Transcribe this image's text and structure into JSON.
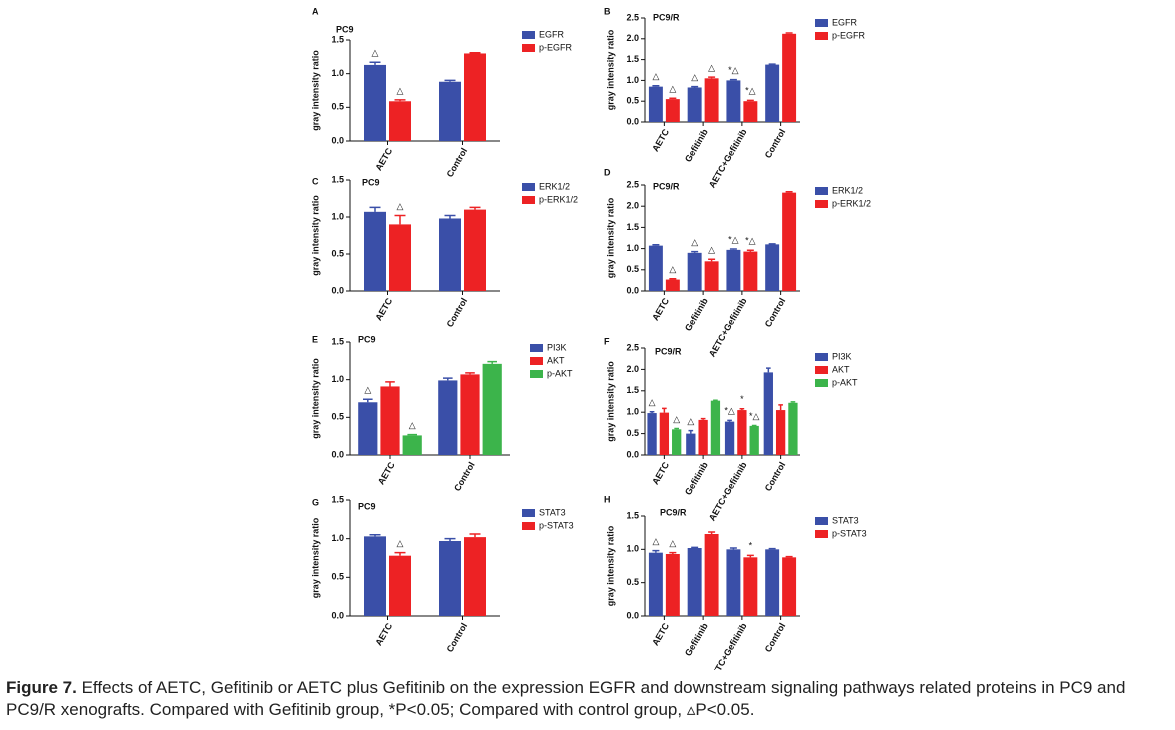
{
  "chart_data": [
    {
      "type": "bar",
      "panel": "A",
      "title": "PC9",
      "y_label": "gray intensity ratio",
      "categories": [
        "AETC",
        "Control"
      ],
      "ylim": [
        0,
        1.5
      ],
      "yticks": [
        {
          "value": 0,
          "label": "0.0"
        },
        0.5,
        {
          "value": 1,
          "label": "1.0"
        },
        1.5
      ],
      "series": [
        {
          "name": "EGFR",
          "color": "#3a4fa8",
          "values": [
            1.13,
            0.88
          ],
          "errors": [
            0.04,
            0.02
          ],
          "annotations": [
            "△",
            null
          ]
        },
        {
          "name": "p-EGFR",
          "color": "#ed2224",
          "values": [
            0.59,
            1.3
          ],
          "errors": [
            0.02,
            0.01
          ],
          "annotations": [
            "△",
            null
          ]
        }
      ]
    },
    {
      "type": "bar",
      "panel": "B",
      "title": "PC9/R",
      "y_label": "gray intensity ratio",
      "categories": [
        "AETC",
        "Gefitinib",
        "AETC+Gefitinib",
        "Control"
      ],
      "ylim": [
        0,
        2.5
      ],
      "yticks": [
        {
          "value": 0,
          "label": "0.0"
        },
        0.5,
        {
          "value": 1,
          "label": "1.0"
        },
        1.5,
        {
          "value": 2,
          "label": "2.0"
        },
        2.5
      ],
      "series": [
        {
          "name": "EGFR",
          "color": "#3a4fa8",
          "values": [
            0.85,
            0.83,
            1.0,
            1.38
          ],
          "errors": [
            0.02,
            0.02,
            0.02,
            0.01
          ],
          "annotations": [
            "△",
            "△",
            "*△",
            null
          ]
        },
        {
          "name": "p-EGFR",
          "color": "#ed2224",
          "values": [
            0.55,
            1.05,
            0.5,
            2.12
          ],
          "errors": [
            0.02,
            0.03,
            0.02,
            0.02
          ],
          "annotations": [
            "△",
            "△",
            "*△",
            null
          ]
        }
      ]
    },
    {
      "type": "bar",
      "panel": "C",
      "title": "PC9",
      "y_label": "gray intensity ratio",
      "categories": [
        "AETC",
        "Control"
      ],
      "ylim": [
        0,
        1.5
      ],
      "yticks": [
        {
          "value": 0,
          "label": "0.0"
        },
        0.5,
        {
          "value": 1,
          "label": "1.0"
        },
        1.5
      ],
      "series": [
        {
          "name": "ERK1/2",
          "color": "#3a4fa8",
          "values": [
            1.07,
            0.98
          ],
          "errors": [
            0.06,
            0.04
          ],
          "annotations": [
            null,
            null
          ]
        },
        {
          "name": "p-ERK1/2",
          "color": "#ed2224",
          "values": [
            0.9,
            1.1
          ],
          "errors": [
            0.12,
            0.03
          ],
          "annotations": [
            "△",
            null
          ]
        }
      ]
    },
    {
      "type": "bar",
      "panel": "D",
      "title": "PC9/R",
      "y_label": "gray intensity ratio",
      "categories": [
        "AETC",
        "Gefitinib",
        "AETC+Gefitinib",
        "Control"
      ],
      "ylim": [
        0,
        2.5
      ],
      "yticks": [
        {
          "value": 0,
          "label": "0.0"
        },
        0.5,
        {
          "value": 1,
          "label": "1.0"
        },
        1.5,
        {
          "value": 2,
          "label": "2.0"
        },
        2.5
      ],
      "series": [
        {
          "name": "ERK1/2",
          "color": "#3a4fa8",
          "values": [
            1.07,
            0.9,
            0.97,
            1.1
          ],
          "errors": [
            0.02,
            0.03,
            0.02,
            0.01
          ],
          "annotations": [
            null,
            "△",
            "*△",
            null
          ]
        },
        {
          "name": "p-ERK1/2",
          "color": "#ed2224",
          "values": [
            0.27,
            0.7,
            0.93,
            2.32
          ],
          "errors": [
            0.02,
            0.05,
            0.03,
            0.02
          ],
          "annotations": [
            "△",
            "△",
            "*△",
            null
          ]
        }
      ]
    },
    {
      "type": "bar",
      "panel": "E",
      "title": "PC9",
      "y_label": "gray intensity ratio",
      "categories": [
        "AETC",
        "Control"
      ],
      "ylim": [
        0,
        1.5
      ],
      "yticks": [
        {
          "value": 0,
          "label": "0.0"
        },
        0.5,
        {
          "value": 1,
          "label": "1.0"
        },
        1.5
      ],
      "series": [
        {
          "name": "PI3K",
          "color": "#3a4fa8",
          "values": [
            0.7,
            0.99
          ],
          "errors": [
            0.04,
            0.03
          ],
          "annotations": [
            "△",
            null
          ]
        },
        {
          "name": "AKT",
          "color": "#ed2224",
          "values": [
            0.91,
            1.07
          ],
          "errors": [
            0.06,
            0.02
          ],
          "annotations": [
            null,
            null
          ]
        },
        {
          "name": "p-AKT",
          "color": "#3cb44b",
          "values": [
            0.26,
            1.21
          ],
          "errors": [
            0.01,
            0.03
          ],
          "annotations": [
            "△",
            null
          ]
        }
      ]
    },
    {
      "type": "bar",
      "panel": "F",
      "title": "PC9/R",
      "y_label": "gray intensity ratio",
      "categories": [
        "AETC",
        "Gefitinib",
        "AETC+Gefitinib",
        "Control"
      ],
      "ylim": [
        0,
        2.5
      ],
      "yticks": [
        {
          "value": 0,
          "label": "0.0"
        },
        0.5,
        {
          "value": 1,
          "label": "1.0"
        },
        1.5,
        {
          "value": 2,
          "label": "2.0"
        },
        2.5
      ],
      "series": [
        {
          "name": "PI3K",
          "color": "#3a4fa8",
          "values": [
            0.98,
            0.5,
            0.78,
            1.93
          ],
          "errors": [
            0.03,
            0.07,
            0.03,
            0.1
          ],
          "annotations": [
            "△",
            "△",
            "*△",
            null
          ]
        },
        {
          "name": "AKT",
          "color": "#ed2224",
          "values": [
            0.99,
            0.82,
            1.05,
            1.05
          ],
          "errors": [
            0.1,
            0.03,
            0.03,
            0.12
          ],
          "annotations": [
            null,
            null,
            "*",
            null
          ]
        },
        {
          "name": "p-AKT",
          "color": "#3cb44b",
          "values": [
            0.6,
            1.27,
            0.68,
            1.22
          ],
          "errors": [
            0.02,
            0.01,
            0.01,
            0.02
          ],
          "annotations": [
            "△",
            null,
            "*△",
            null
          ]
        }
      ]
    },
    {
      "type": "bar",
      "panel": "G",
      "title": "PC9",
      "y_label": "gray intensity ratio",
      "categories": [
        "AETC",
        "Control"
      ],
      "ylim": [
        0,
        1.5
      ],
      "yticks": [
        {
          "value": 0,
          "label": "0.0"
        },
        0.5,
        {
          "value": 1,
          "label": "1.0"
        },
        1.5
      ],
      "series": [
        {
          "name": "STAT3",
          "color": "#3a4fa8",
          "values": [
            1.03,
            0.97
          ],
          "errors": [
            0.02,
            0.03
          ],
          "annotations": [
            null,
            null
          ]
        },
        {
          "name": "p-STAT3",
          "color": "#ed2224",
          "values": [
            0.78,
            1.02
          ],
          "errors": [
            0.04,
            0.04
          ],
          "annotations": [
            "△",
            null
          ]
        }
      ]
    },
    {
      "type": "bar",
      "panel": "H",
      "title": "PC9/R",
      "y_label": "gray intensity ratio",
      "categories": [
        "AETC",
        "Gefitinib",
        "AETC+Gefitinib",
        "Control"
      ],
      "ylim": [
        0,
        1.5
      ],
      "yticks": [
        {
          "value": 0,
          "label": "0.0"
        },
        0.5,
        {
          "value": 1,
          "label": "1.0"
        },
        1.5
      ],
      "series": [
        {
          "name": "STAT3",
          "color": "#3a4fa8",
          "values": [
            0.95,
            1.02,
            1.0,
            1.0
          ],
          "errors": [
            0.03,
            0.01,
            0.02,
            0.01
          ],
          "annotations": [
            "△",
            null,
            null,
            null
          ]
        },
        {
          "name": "p-STAT3",
          "color": "#ed2224",
          "values": [
            0.93,
            1.23,
            0.88,
            0.88
          ],
          "errors": [
            0.02,
            0.03,
            0.03,
            0.01
          ],
          "annotations": [
            "△",
            null,
            "*",
            null
          ]
        }
      ]
    }
  ],
  "caption": {
    "label": "Figure 7.",
    "text": "Effects of AETC, Gefitinib or AETC plus Gefitinib on the expression EGFR and downstream signaling pathways related proteins in PC9 and PC9/R xenografts. Compared with Gefitinib group, *P<0.05; Compared with control group, ▵P<0.05."
  }
}
